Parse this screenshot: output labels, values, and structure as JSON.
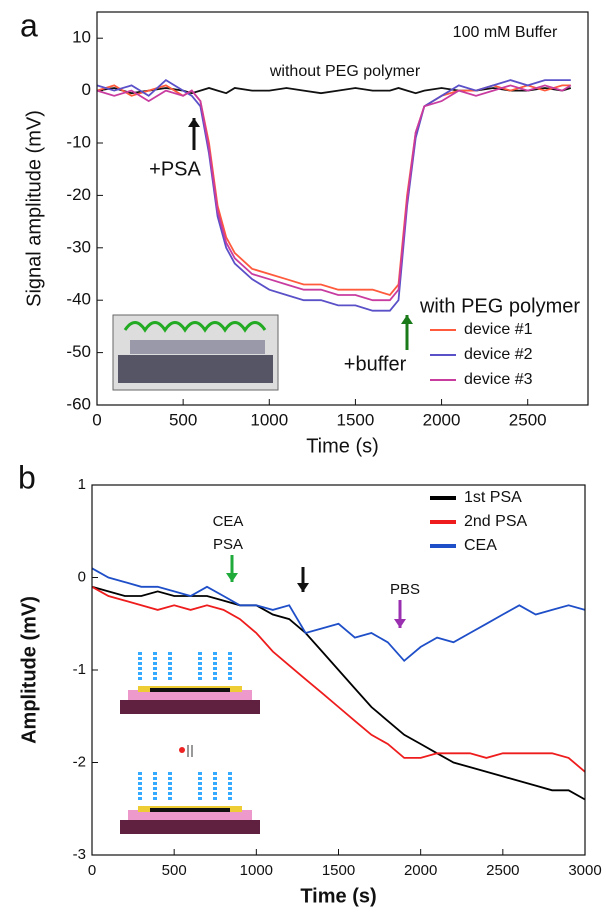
{
  "chart_data": [
    {
      "type": "line",
      "label": "a",
      "annotations": [
        "100 mM Buffer",
        "+PSA",
        "+buffer",
        "with PEG polymer"
      ],
      "x_label": "Time (s)",
      "y_label": "Signal amplitude (mV)",
      "xlim": [
        0,
        2850
      ],
      "ylim": [
        -60,
        15
      ],
      "xticks": [
        0,
        500,
        1000,
        1500,
        2000,
        2500
      ],
      "yticks": [
        -60,
        -50,
        -40,
        -30,
        -20,
        -10,
        0,
        10
      ],
      "x": [
        0,
        100,
        200,
        300,
        400,
        500,
        550,
        600,
        650,
        700,
        750,
        800,
        900,
        1000,
        1100,
        1200,
        1300,
        1400,
        1500,
        1600,
        1700,
        1750,
        1800,
        1850,
        1900,
        2000,
        2100,
        2200,
        2300,
        2400,
        2500,
        2600,
        2700,
        2750
      ],
      "series": [
        {
          "name": "without PEG polymer",
          "color": "#111111",
          "legend": false,
          "values": [
            0,
            0.5,
            -0.5,
            0,
            0.5,
            0,
            -0.5,
            0,
            0.5,
            0,
            -0.5,
            0.5,
            0,
            0,
            0.5,
            0,
            -0.5,
            0,
            0.5,
            0,
            0,
            0.5,
            0,
            -0.5,
            0,
            0.5,
            0,
            0,
            0.5,
            0,
            0,
            0.5,
            0,
            0.5
          ]
        },
        {
          "name": "device #1",
          "color": "#ff5a3c",
          "legend": true,
          "values": [
            0,
            1,
            -1,
            0,
            1,
            -1,
            0,
            -2,
            -10,
            -22,
            -28,
            -31,
            -34,
            -35,
            -36,
            -37,
            -37,
            -38,
            -38,
            -38,
            -39,
            -37,
            -20,
            -8,
            -3,
            -1,
            0,
            0,
            1,
            0,
            1,
            0,
            1,
            1
          ]
        },
        {
          "name": "device #2",
          "color": "#5a50c8",
          "legend": true,
          "values": [
            1,
            0,
            1,
            -1,
            2,
            0,
            -1,
            -3,
            -12,
            -24,
            -30,
            -33,
            -36,
            -38,
            -39,
            -40,
            -40,
            -41,
            -41,
            -42,
            -42,
            -40,
            -22,
            -9,
            -3,
            -1,
            1,
            0,
            1,
            2,
            1,
            2,
            2,
            2
          ]
        },
        {
          "name": "device #3",
          "color": "#c83ca0",
          "legend": true,
          "values": [
            0,
            -1,
            0,
            -2,
            0,
            -1,
            0,
            -2,
            -11,
            -23,
            -29,
            -32,
            -35,
            -36,
            -37,
            -38,
            -38,
            -39,
            -39,
            -40,
            -40,
            -38,
            -21,
            -8,
            -3,
            -2,
            0,
            -1,
            0,
            1,
            0,
            1,
            0,
            1
          ]
        }
      ]
    },
    {
      "type": "line",
      "label": "b",
      "annotations": [
        "CEA",
        "PSA",
        "PBS"
      ],
      "x_label": "Time (s)",
      "y_label": "Amplitude (mV)",
      "xlim": [
        0,
        3000
      ],
      "ylim": [
        -3,
        1
      ],
      "xticks": [
        0,
        500,
        1000,
        1500,
        2000,
        2500,
        3000
      ],
      "yticks": [
        -3,
        -2,
        -1,
        0,
        1
      ],
      "x": [
        0,
        100,
        200,
        300,
        400,
        500,
        600,
        700,
        800,
        900,
        1000,
        1100,
        1200,
        1300,
        1400,
        1500,
        1600,
        1700,
        1800,
        1900,
        2000,
        2100,
        2200,
        2300,
        2400,
        2500,
        2600,
        2700,
        2800,
        2900,
        3000
      ],
      "series": [
        {
          "name": "1st PSA",
          "color": "#000000",
          "legend": true,
          "values": [
            -0.1,
            -0.15,
            -0.2,
            -0.2,
            -0.15,
            -0.2,
            -0.2,
            -0.2,
            -0.25,
            -0.3,
            -0.3,
            -0.4,
            -0.45,
            -0.6,
            -0.8,
            -1.0,
            -1.2,
            -1.4,
            -1.55,
            -1.7,
            -1.8,
            -1.9,
            -2.0,
            -2.05,
            -2.1,
            -2.15,
            -2.2,
            -2.25,
            -2.3,
            -2.3,
            -2.4
          ]
        },
        {
          "name": "2nd PSA",
          "color": "#ee1c1c",
          "legend": true,
          "values": [
            -0.1,
            -0.2,
            -0.25,
            -0.3,
            -0.35,
            -0.3,
            -0.35,
            -0.3,
            -0.35,
            -0.45,
            -0.6,
            -0.8,
            -0.95,
            -1.1,
            -1.25,
            -1.4,
            -1.55,
            -1.7,
            -1.8,
            -1.95,
            -1.95,
            -1.9,
            -1.9,
            -1.9,
            -1.95,
            -1.9,
            -1.9,
            -1.9,
            -1.9,
            -1.95,
            -2.1
          ]
        },
        {
          "name": "CEA",
          "color": "#1f4fc8",
          "legend": true,
          "values": [
            0.1,
            0.0,
            -0.05,
            -0.1,
            -0.1,
            -0.15,
            -0.2,
            -0.1,
            -0.2,
            -0.3,
            -0.3,
            -0.35,
            -0.3,
            -0.6,
            -0.55,
            -0.5,
            -0.65,
            -0.6,
            -0.7,
            -0.9,
            -0.75,
            -0.65,
            -0.7,
            -0.6,
            -0.5,
            -0.4,
            -0.3,
            -0.4,
            -0.35,
            -0.3,
            -0.35
          ]
        }
      ]
    }
  ]
}
